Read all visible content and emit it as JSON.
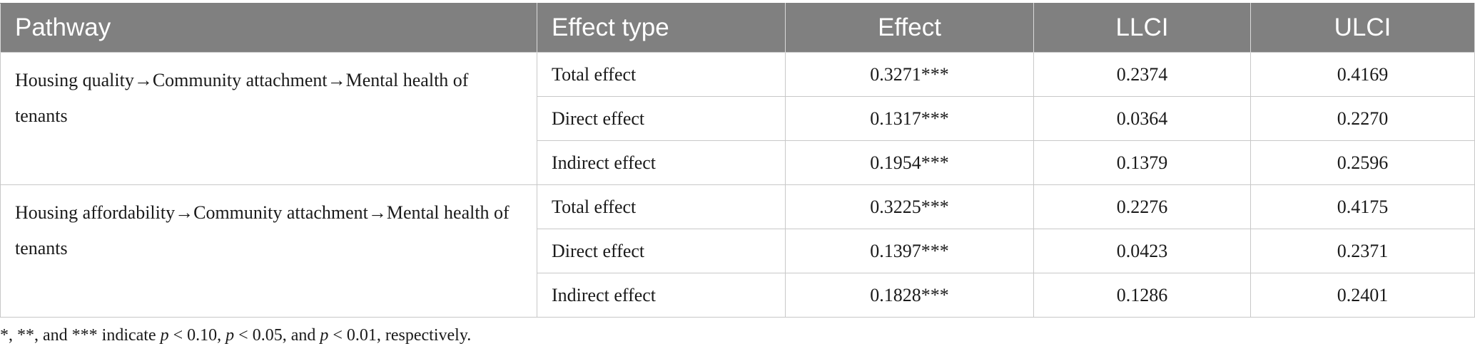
{
  "table": {
    "headers": [
      "Pathway",
      "Effect type",
      "Effect",
      "LLCI",
      "ULCI"
    ],
    "groups": [
      {
        "pathway": "Housing quality→Community attachment→Mental health of tenants",
        "rows": [
          {
            "effect_type": "Total effect",
            "effect": "0.3271***",
            "llci": "0.2374",
            "ulci": "0.4169"
          },
          {
            "effect_type": "Direct effect",
            "effect": "0.1317***",
            "llci": "0.0364",
            "ulci": "0.2270"
          },
          {
            "effect_type": "Indirect effect",
            "effect": "0.1954***",
            "llci": "0.1379",
            "ulci": "0.2596"
          }
        ]
      },
      {
        "pathway": "Housing affordability→Community attachment→Mental health of tenants",
        "rows": [
          {
            "effect_type": "Total effect",
            "effect": "0.3225***",
            "llci": "0.2276",
            "ulci": "0.4175"
          },
          {
            "effect_type": "Direct effect",
            "effect": "0.1397***",
            "llci": "0.0423",
            "ulci": "0.2371"
          },
          {
            "effect_type": "Indirect effect",
            "effect": "0.1828***",
            "llci": "0.1286",
            "ulci": "0.2401"
          }
        ]
      }
    ]
  },
  "footnote": {
    "part1": "*, **, and *** indicate ",
    "p1": "p",
    "part2": " < 0.10, ",
    "p2": "p",
    "part3": " < 0.05, and ",
    "p3": "p",
    "part4": " < 0.01, respectively."
  }
}
